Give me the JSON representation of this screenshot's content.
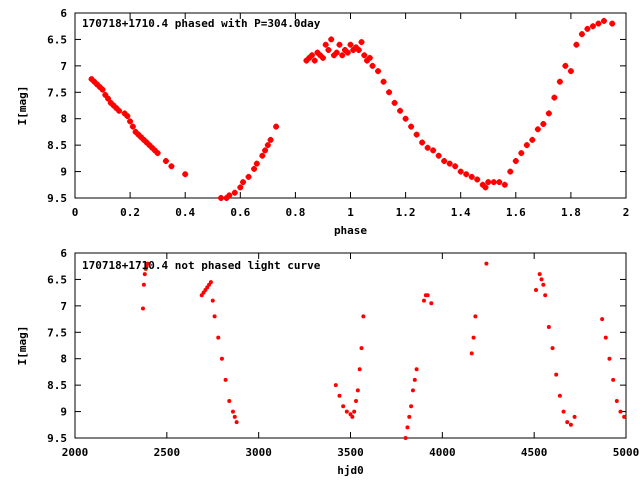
{
  "colors": {
    "series": "#ff0000",
    "axis": "#000000",
    "background": "#ffffff"
  },
  "chart_data": [
    {
      "type": "scatter",
      "title": "170718+1710.4 phased with P=304.0day",
      "xlabel": "phase",
      "ylabel": "I[mag]",
      "xlim": [
        0,
        2
      ],
      "ylim": [
        9.5,
        6
      ],
      "y_inverted": true,
      "grid": false,
      "x_ticks": [
        "0",
        "0.2",
        "0.4",
        "0.6",
        "0.8",
        "1",
        "1.2",
        "1.4",
        "1.6",
        "1.8",
        "2"
      ],
      "y_ticks": [
        "6",
        "6.5",
        "7",
        "7.5",
        "8",
        "8.5",
        "9",
        "9.5"
      ],
      "points": [
        [
          0.06,
          7.25
        ],
        [
          0.07,
          7.3
        ],
        [
          0.08,
          7.35
        ],
        [
          0.09,
          7.4
        ],
        [
          0.1,
          7.45
        ],
        [
          0.11,
          7.55
        ],
        [
          0.12,
          7.62
        ],
        [
          0.13,
          7.7
        ],
        [
          0.14,
          7.75
        ],
        [
          0.15,
          7.8
        ],
        [
          0.16,
          7.85
        ],
        [
          0.18,
          7.9
        ],
        [
          0.19,
          7.95
        ],
        [
          0.2,
          8.05
        ],
        [
          0.21,
          8.15
        ],
        [
          0.22,
          8.25
        ],
        [
          0.23,
          8.3
        ],
        [
          0.24,
          8.35
        ],
        [
          0.25,
          8.4
        ],
        [
          0.26,
          8.45
        ],
        [
          0.27,
          8.5
        ],
        [
          0.28,
          8.55
        ],
        [
          0.29,
          8.6
        ],
        [
          0.3,
          8.65
        ],
        [
          0.33,
          8.8
        ],
        [
          0.35,
          8.9
        ],
        [
          0.4,
          9.05
        ],
        [
          0.53,
          9.5
        ],
        [
          0.55,
          9.5
        ],
        [
          0.56,
          9.45
        ],
        [
          0.58,
          9.4
        ],
        [
          0.6,
          9.3
        ],
        [
          0.61,
          9.2
        ],
        [
          0.63,
          9.1
        ],
        [
          0.65,
          8.95
        ],
        [
          0.66,
          8.85
        ],
        [
          0.68,
          8.7
        ],
        [
          0.69,
          8.6
        ],
        [
          0.7,
          8.5
        ],
        [
          0.71,
          8.4
        ],
        [
          0.73,
          8.15
        ],
        [
          0.84,
          6.9
        ],
        [
          0.85,
          6.85
        ],
        [
          0.86,
          6.8
        ],
        [
          0.87,
          6.9
        ],
        [
          0.88,
          6.75
        ],
        [
          0.89,
          6.8
        ],
        [
          0.9,
          6.85
        ],
        [
          0.91,
          6.6
        ],
        [
          0.92,
          6.7
        ],
        [
          0.93,
          6.5
        ],
        [
          0.94,
          6.8
        ],
        [
          0.95,
          6.75
        ],
        [
          0.96,
          6.6
        ],
        [
          0.97,
          6.8
        ],
        [
          0.98,
          6.7
        ],
        [
          0.99,
          6.75
        ],
        [
          1.0,
          6.6
        ],
        [
          1.01,
          6.7
        ],
        [
          1.02,
          6.65
        ],
        [
          1.03,
          6.7
        ],
        [
          1.04,
          6.55
        ],
        [
          1.05,
          6.8
        ],
        [
          1.06,
          6.9
        ],
        [
          1.07,
          6.85
        ],
        [
          1.08,
          7.0
        ],
        [
          1.1,
          7.1
        ],
        [
          1.12,
          7.3
        ],
        [
          1.14,
          7.5
        ],
        [
          1.16,
          7.7
        ],
        [
          1.18,
          7.85
        ],
        [
          1.2,
          8.0
        ],
        [
          1.22,
          8.15
        ],
        [
          1.24,
          8.3
        ],
        [
          1.26,
          8.45
        ],
        [
          1.28,
          8.55
        ],
        [
          1.3,
          8.6
        ],
        [
          1.32,
          8.7
        ],
        [
          1.34,
          8.8
        ],
        [
          1.36,
          8.85
        ],
        [
          1.38,
          8.9
        ],
        [
          1.4,
          9.0
        ],
        [
          1.42,
          9.05
        ],
        [
          1.44,
          9.1
        ],
        [
          1.46,
          9.15
        ],
        [
          1.48,
          9.25
        ],
        [
          1.49,
          9.3
        ],
        [
          1.5,
          9.2
        ],
        [
          1.52,
          9.2
        ],
        [
          1.54,
          9.2
        ],
        [
          1.56,
          9.25
        ],
        [
          1.58,
          9.0
        ],
        [
          1.6,
          8.8
        ],
        [
          1.62,
          8.65
        ],
        [
          1.64,
          8.5
        ],
        [
          1.66,
          8.4
        ],
        [
          1.68,
          8.2
        ],
        [
          1.7,
          8.1
        ],
        [
          1.72,
          7.9
        ],
        [
          1.74,
          7.6
        ],
        [
          1.76,
          7.3
        ],
        [
          1.78,
          7.0
        ],
        [
          1.8,
          7.1
        ],
        [
          1.82,
          6.6
        ],
        [
          1.84,
          6.4
        ],
        [
          1.86,
          6.3
        ],
        [
          1.88,
          6.25
        ],
        [
          1.9,
          6.2
        ],
        [
          1.92,
          6.15
        ],
        [
          1.95,
          6.2
        ]
      ]
    },
    {
      "type": "scatter",
      "title": "170718+1710.4 not phased light curve",
      "xlabel": "hjd0",
      "ylabel": "I[mag]",
      "xlim": [
        2000,
        5000
      ],
      "ylim": [
        9.5,
        6
      ],
      "y_inverted": true,
      "grid": false,
      "x_ticks": [
        "2000",
        "2500",
        "3000",
        "3500",
        "4000",
        "4500",
        "5000"
      ],
      "y_ticks": [
        "6",
        "6.5",
        "7",
        "7.5",
        "8",
        "8.5",
        "9",
        "9.5"
      ],
      "points": [
        [
          2370,
          7.05
        ],
        [
          2375,
          6.6
        ],
        [
          2380,
          6.4
        ],
        [
          2385,
          6.3
        ],
        [
          2390,
          6.25
        ],
        [
          2395,
          6.2
        ],
        [
          2690,
          6.8
        ],
        [
          2700,
          6.75
        ],
        [
          2710,
          6.7
        ],
        [
          2720,
          6.65
        ],
        [
          2730,
          6.6
        ],
        [
          2740,
          6.55
        ],
        [
          2750,
          6.9
        ],
        [
          2760,
          7.2
        ],
        [
          2780,
          7.6
        ],
        [
          2800,
          8.0
        ],
        [
          2820,
          8.4
        ],
        [
          2840,
          8.8
        ],
        [
          2860,
          9.0
        ],
        [
          2870,
          9.1
        ],
        [
          2880,
          9.2
        ],
        [
          3420,
          8.5
        ],
        [
          3440,
          8.7
        ],
        [
          3460,
          8.9
        ],
        [
          3480,
          9.0
        ],
        [
          3500,
          9.05
        ],
        [
          3510,
          9.1
        ],
        [
          3520,
          9.0
        ],
        [
          3530,
          8.8
        ],
        [
          3540,
          8.6
        ],
        [
          3550,
          8.2
        ],
        [
          3560,
          7.8
        ],
        [
          3570,
          7.2
        ],
        [
          3800,
          9.5
        ],
        [
          3810,
          9.3
        ],
        [
          3820,
          9.1
        ],
        [
          3830,
          8.9
        ],
        [
          3840,
          8.6
        ],
        [
          3850,
          8.4
        ],
        [
          3860,
          8.2
        ],
        [
          3900,
          6.9
        ],
        [
          3910,
          6.8
        ],
        [
          3920,
          6.8
        ],
        [
          3940,
          6.95
        ],
        [
          4160,
          7.9
        ],
        [
          4170,
          7.6
        ],
        [
          4180,
          7.2
        ],
        [
          4240,
          6.2
        ],
        [
          4510,
          6.7
        ],
        [
          4530,
          6.4
        ],
        [
          4540,
          6.5
        ],
        [
          4550,
          6.6
        ],
        [
          4560,
          6.8
        ],
        [
          4580,
          7.4
        ],
        [
          4600,
          7.8
        ],
        [
          4620,
          8.3
        ],
        [
          4640,
          8.7
        ],
        [
          4660,
          9.0
        ],
        [
          4680,
          9.2
        ],
        [
          4700,
          9.25
        ],
        [
          4720,
          9.1
        ],
        [
          4870,
          7.25
        ],
        [
          4890,
          7.6
        ],
        [
          4910,
          8.0
        ],
        [
          4930,
          8.4
        ],
        [
          4950,
          8.8
        ],
        [
          4970,
          9.0
        ],
        [
          4990,
          9.1
        ]
      ]
    }
  ]
}
